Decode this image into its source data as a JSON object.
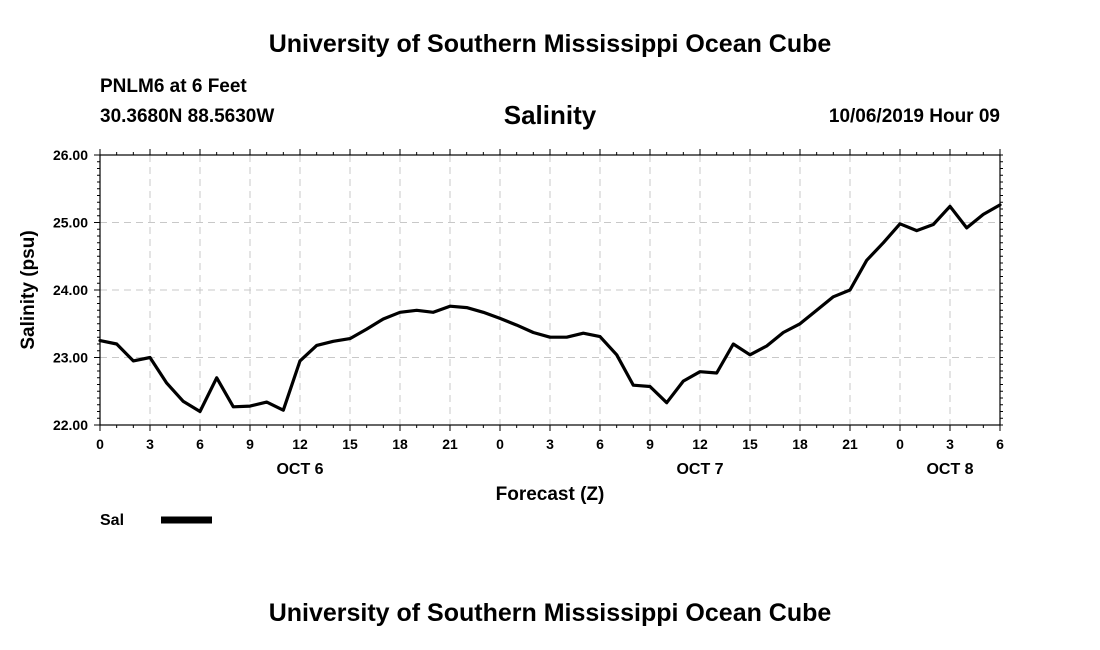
{
  "header": {
    "title": "University of Southern Mississippi Ocean Cube",
    "station": "PNLM6 at 6 Feet",
    "coordinates": "30.3680N 88.5630W",
    "variable": "Salinity",
    "datetime": "10/06/2019 Hour 09"
  },
  "footer": {
    "title": "University of Southern Mississippi Ocean Cube"
  },
  "chart_data": {
    "type": "line",
    "title": "Salinity",
    "xlabel": "Forecast (Z)",
    "ylabel": "Salinity (psu)",
    "ylim": [
      22.0,
      26.0
    ],
    "xlim": [
      0,
      54
    ],
    "y_ticks": [
      "22.00",
      "23.00",
      "24.00",
      "25.00",
      "26.00"
    ],
    "x_tick_labels": [
      "0",
      "3",
      "6",
      "9",
      "12",
      "15",
      "18",
      "21",
      "0",
      "3",
      "6",
      "9",
      "12",
      "15",
      "18",
      "21",
      "0",
      "3",
      "6"
    ],
    "day_labels": [
      {
        "label": "OCT 6",
        "hour": 12
      },
      {
        "label": "OCT 7",
        "hour": 36
      },
      {
        "label": "OCT 8",
        "hour": 51
      }
    ],
    "grid": true,
    "legend": "bottom-left",
    "series": [
      {
        "name": "Sal",
        "color": "#000000",
        "x": [
          0,
          1,
          2,
          3,
          4,
          5,
          6,
          7,
          8,
          9,
          10,
          11,
          12,
          13,
          14,
          15,
          16,
          17,
          18,
          19,
          20,
          21,
          22,
          23,
          24,
          25,
          26,
          27,
          28,
          29,
          30,
          31,
          32,
          33,
          34,
          35,
          36,
          37,
          38,
          39,
          40,
          41,
          42,
          43,
          44,
          45,
          46,
          47,
          48,
          49,
          50,
          51,
          52,
          53,
          54
        ],
        "values": [
          23.25,
          23.2,
          22.95,
          23.0,
          22.62,
          22.35,
          22.2,
          22.7,
          22.27,
          22.28,
          22.34,
          22.22,
          22.95,
          23.18,
          23.24,
          23.28,
          23.42,
          23.57,
          23.67,
          23.7,
          23.67,
          23.76,
          23.74,
          23.67,
          23.58,
          23.48,
          23.37,
          23.3,
          23.3,
          23.36,
          23.31,
          23.04,
          22.59,
          22.57,
          22.33,
          22.65,
          22.79,
          22.77,
          23.2,
          23.04,
          23.17,
          23.37,
          23.5,
          23.7,
          23.9,
          24.0,
          24.44,
          24.7,
          24.98,
          24.88,
          24.97,
          25.24,
          24.92,
          25.12,
          25.26
        ]
      }
    ]
  }
}
